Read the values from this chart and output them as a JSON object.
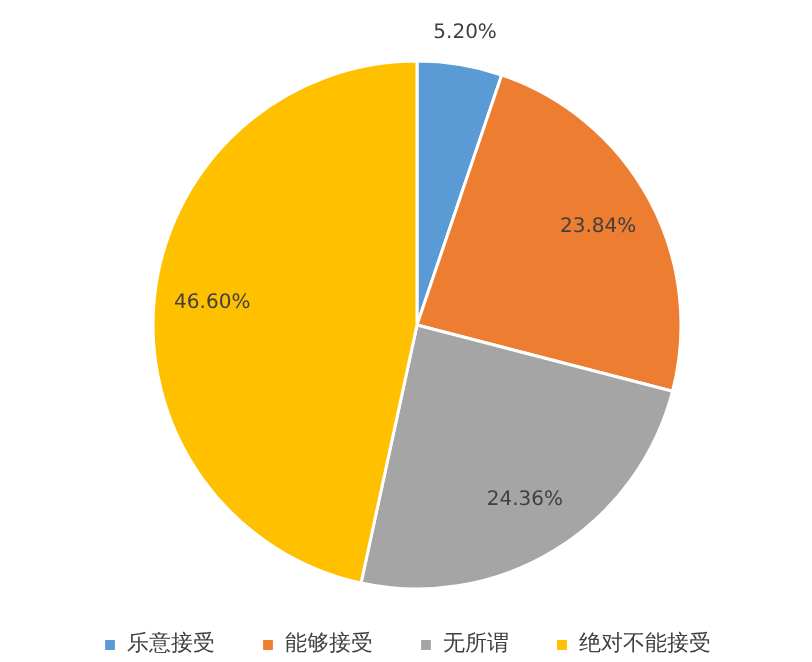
{
  "chart_data": {
    "type": "pie",
    "categories": [
      "乐意接受",
      "能够接受",
      "无所谓",
      "绝对不能接受"
    ],
    "values": [
      5.2,
      23.84,
      24.36,
      46.6
    ],
    "colors": [
      "#5b9bd5",
      "#ed7d31",
      "#a5a5a5",
      "#ffc000"
    ],
    "value_labels": [
      "5.20%",
      "23.84%",
      "24.36%",
      "46.60%"
    ],
    "legend": "bottom"
  }
}
